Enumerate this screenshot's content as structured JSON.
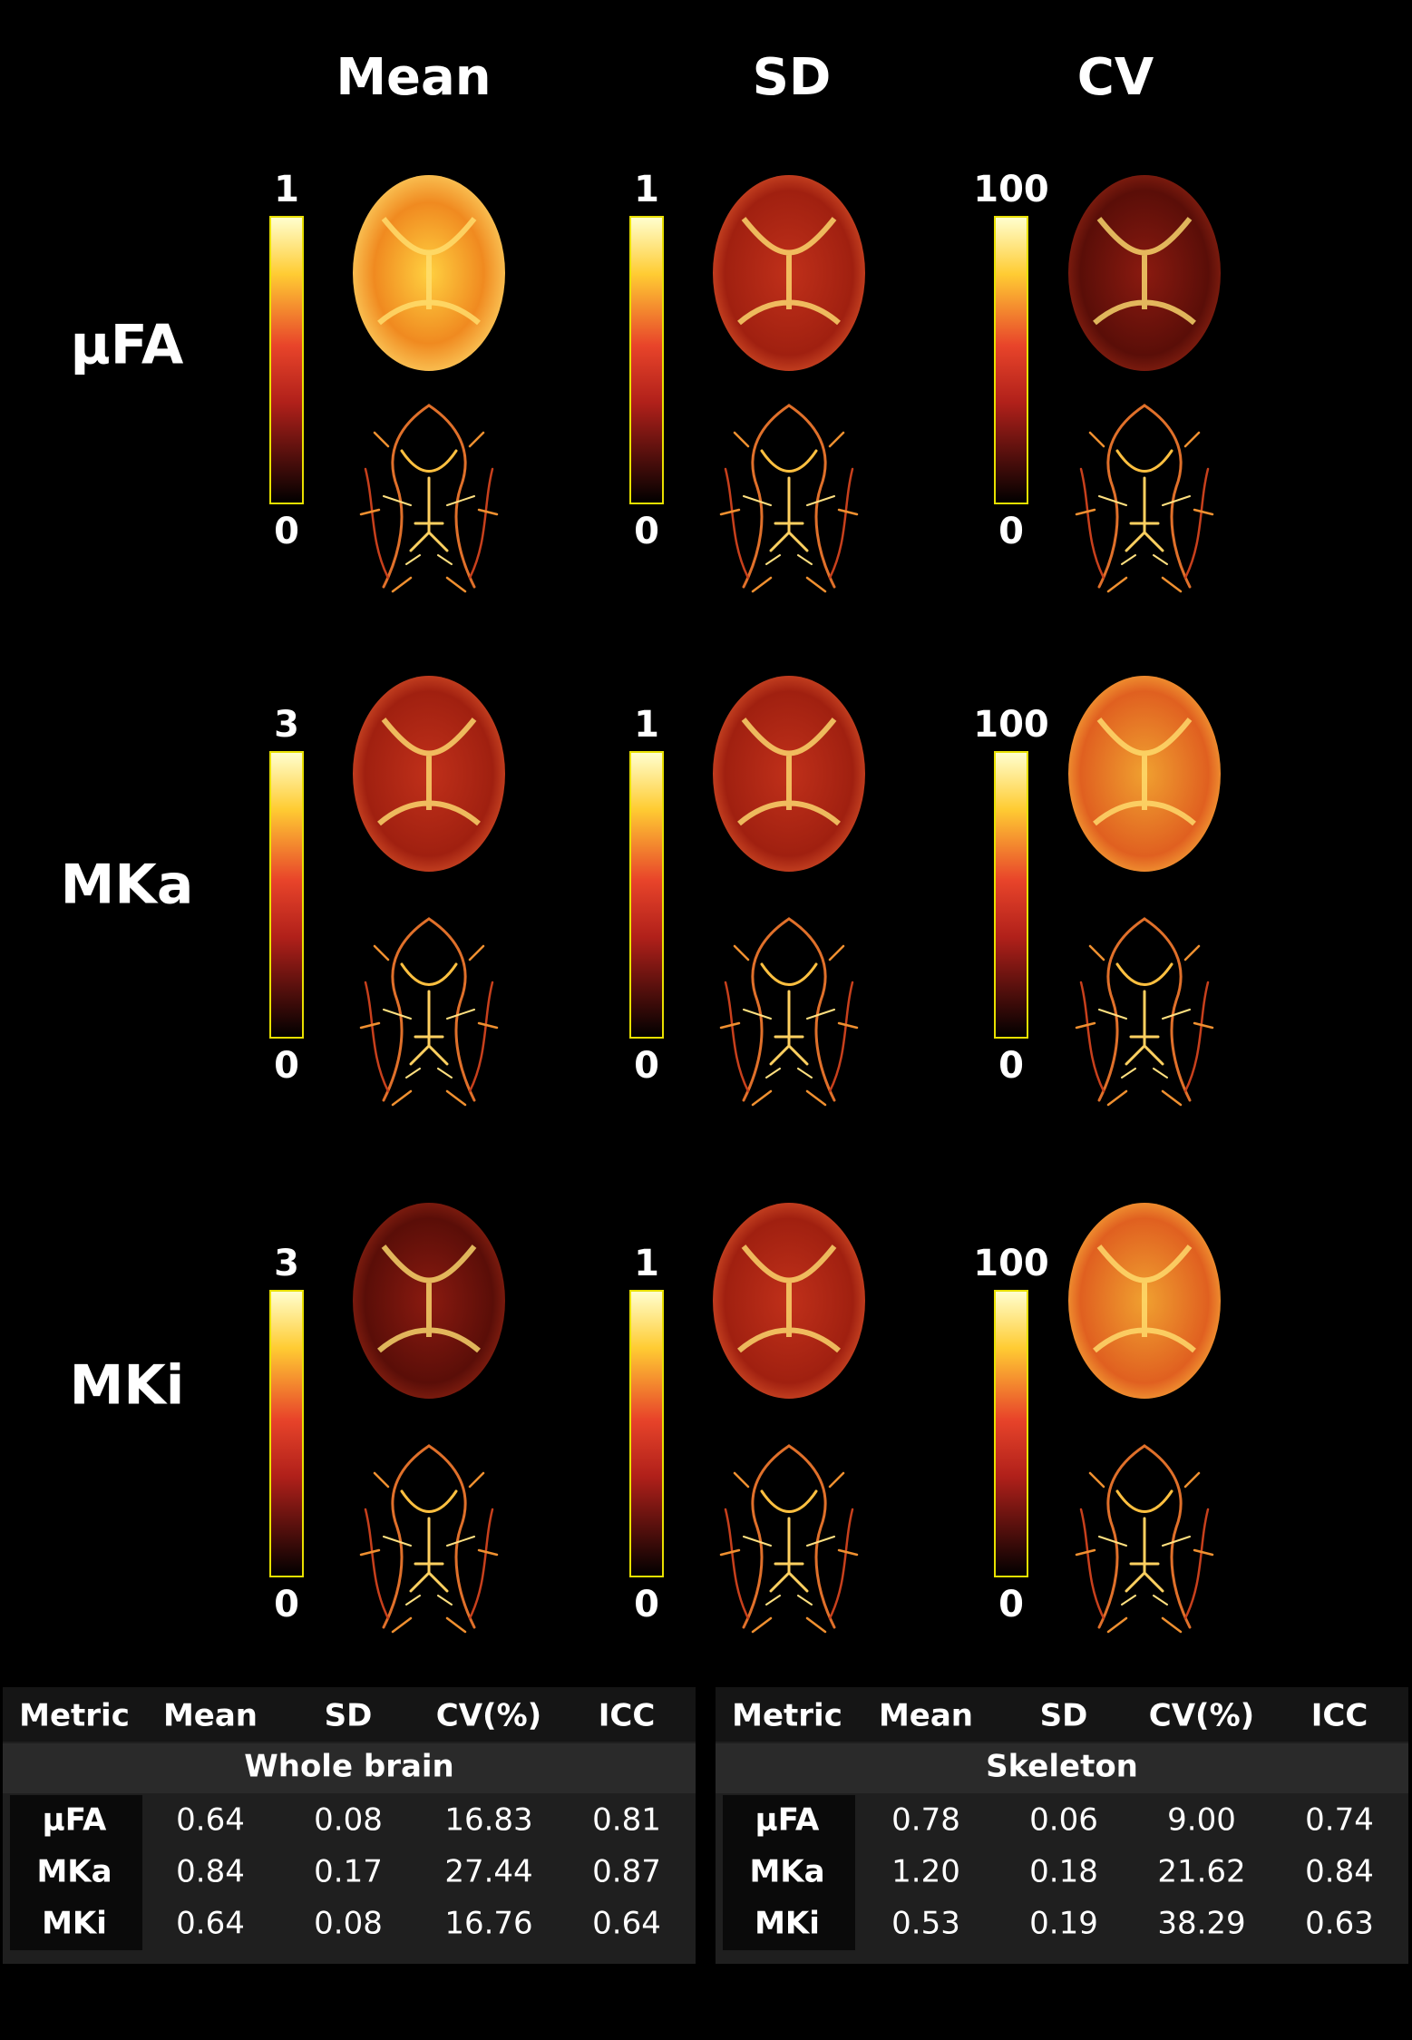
{
  "columns": [
    "Mean",
    "SD",
    "CV"
  ],
  "rows": [
    {
      "label": "μFA",
      "colorbars": [
        {
          "max": 1,
          "min": 0
        },
        {
          "max": 1,
          "min": 0
        },
        {
          "max": 100,
          "min": 0
        }
      ]
    },
    {
      "label": "MKa",
      "colorbars": [
        {
          "max": 3,
          "min": 0
        },
        {
          "max": 1,
          "min": 0
        },
        {
          "max": 100,
          "min": 0
        }
      ]
    },
    {
      "label": "MKi",
      "colorbars": [
        {
          "max": 3,
          "min": 0
        },
        {
          "max": 1,
          "min": 0
        },
        {
          "max": 100,
          "min": 0
        }
      ]
    }
  ],
  "tables": [
    {
      "headers": [
        "Metric",
        "Mean",
        "SD",
        "CV(%)",
        "ICC"
      ],
      "group": "Whole brain",
      "rows": [
        [
          "μFA",
          "0.64",
          "0.08",
          "16.83",
          "0.81"
        ],
        [
          "MKa",
          "0.84",
          "0.17",
          "27.44",
          "0.87"
        ],
        [
          "MKi",
          "0.64",
          "0.08",
          "16.76",
          "0.64"
        ]
      ]
    },
    {
      "headers": [
        "Metric",
        "Mean",
        "SD",
        "CV(%)",
        "ICC"
      ],
      "group": "Skeleton",
      "rows": [
        [
          "μFA",
          "0.78",
          "0.06",
          "9.00",
          "0.74"
        ],
        [
          "MKa",
          "1.20",
          "0.18",
          "21.62",
          "0.84"
        ],
        [
          "MKi",
          "0.53",
          "0.19",
          "38.29",
          "0.63"
        ]
      ]
    }
  ]
}
